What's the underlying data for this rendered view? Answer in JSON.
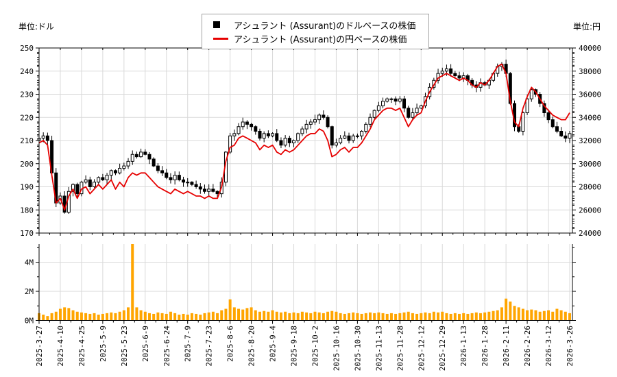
{
  "axes": {
    "unit_left": "単位:ドル",
    "unit_right": "単位:円"
  },
  "legend": {
    "items": [
      {
        "marker": "black-square",
        "label": "アシュラント (Assurant)のドルベースの株価"
      },
      {
        "marker": "red-line",
        "label": "アシュラント (Assurant)の円ベースの株価"
      }
    ]
  },
  "colors": {
    "candle_up_fill": "#ffffff",
    "candle_down_fill": "#000000",
    "candle_stroke": "#000000",
    "yen_line": "#e60000",
    "volume_bar": "#ffa500",
    "grid": "#d9d9d9",
    "axis": "#000000",
    "legend_border": "#a0a0a0"
  },
  "chart_data": {
    "type": "candlestick+line+volume",
    "grid": true,
    "legend_position": "top-center",
    "x_tick_every_n_points": 5,
    "x_tick_labels": [
      "2025-3-27",
      "2025-4-10",
      "2025-4-25",
      "2025-5-9",
      "2025-5-23",
      "2025-6-9",
      "2025-6-24",
      "2025-7-9",
      "2025-7-23",
      "2025-8-6",
      "2025-8-20",
      "2025-9-4",
      "2025-9-18",
      "2025-10-2",
      "2025-10-16",
      "2025-10-30",
      "2025-11-13",
      "2025-11-28",
      "2025-12-12",
      "2025-12-29",
      "2026-1-13",
      "2026-1-28",
      "2026-2-11",
      "2026-2-26",
      "2026-3-12",
      "2026-3-26"
    ],
    "price_axis": {
      "label": "単位:ドル",
      "ylim": [
        170,
        250
      ],
      "ticks": [
        250,
        240,
        230,
        220,
        210,
        200,
        190,
        180,
        170
      ],
      "minor_step": 2
    },
    "yen_axis": {
      "label": "単位:円",
      "ylim": [
        24000,
        40000
      ],
      "ticks": [
        40000,
        38000,
        36000,
        34000,
        32000,
        30000,
        28000,
        26000,
        24000
      ],
      "minor_step": 500
    },
    "volume_axis": {
      "ylim": [
        0,
        5.25
      ],
      "ticks": [
        0,
        2,
        4
      ],
      "tick_labels": [
        "0M",
        "2M",
        "4M"
      ],
      "minor_ticks": [
        1,
        3,
        5
      ]
    },
    "series": [
      {
        "name": "アシュラント (Assurant)のドルベースの株価",
        "type": "candlestick",
        "close_usd": [
          211,
          212,
          210,
          196,
          183,
          186,
          179,
          188,
          191,
          187,
          192,
          193,
          190,
          192,
          194,
          193,
          195,
          197,
          196,
          198,
          199,
          201,
          204,
          203,
          205,
          204,
          202,
          199,
          197,
          196,
          194,
          193,
          195,
          193,
          192,
          192,
          191,
          190,
          189,
          188,
          189,
          188,
          187,
          192,
          205,
          212,
          213,
          216,
          218,
          217,
          216,
          214,
          211,
          213,
          212,
          213,
          210,
          208,
          211,
          209,
          210,
          213,
          215,
          217,
          218,
          219,
          221,
          220,
          216,
          208,
          209,
          211,
          212,
          210,
          212,
          212,
          214,
          217,
          220,
          223,
          225,
          227,
          228,
          228,
          227,
          228,
          224,
          220,
          222,
          224,
          225,
          229,
          233,
          236,
          239,
          240,
          241,
          239,
          238,
          237,
          238,
          236,
          234,
          233,
          235,
          234,
          236,
          239,
          242,
          243,
          239,
          226,
          216,
          214,
          222,
          228,
          232,
          230,
          226,
          222,
          219,
          216,
          214,
          212,
          211,
          213
        ]
      },
      {
        "name": "アシュラント (Assurant)の円ベースの株価",
        "type": "line",
        "close_jpy": [
          31800,
          32000,
          31600,
          29000,
          26600,
          27000,
          26000,
          27200,
          27800,
          27000,
          27800,
          28000,
          27400,
          27800,
          28200,
          27800,
          28200,
          28600,
          27800,
          28400,
          28000,
          28800,
          29200,
          29000,
          29200,
          29200,
          28800,
          28400,
          28000,
          27800,
          27600,
          27400,
          27800,
          27600,
          27400,
          27600,
          27400,
          27200,
          27200,
          27000,
          27200,
          27000,
          27000,
          28000,
          30200,
          31400,
          31600,
          32200,
          32400,
          32200,
          32000,
          31800,
          31200,
          31600,
          31400,
          31600,
          31000,
          30800,
          31200,
          31000,
          31200,
          31600,
          32000,
          32400,
          32600,
          32600,
          33000,
          32800,
          32000,
          30600,
          30800,
          31200,
          31400,
          31000,
          31400,
          31400,
          31800,
          32400,
          33000,
          33800,
          34200,
          34600,
          34800,
          34800,
          34600,
          34800,
          34000,
          33200,
          33800,
          34200,
          34400,
          35400,
          36200,
          36800,
          37400,
          37600,
          37800,
          37600,
          37400,
          37200,
          37400,
          37200,
          36800,
          36600,
          37000,
          36800,
          37200,
          37800,
          38400,
          38600,
          37800,
          35400,
          33600,
          33200,
          34800,
          35800,
          36600,
          36200,
          35600,
          35000,
          34600,
          34200,
          34000,
          33800,
          33800,
          34400
        ]
      },
      {
        "name": "出来高",
        "type": "bar",
        "values_millions": [
          0.5,
          0.4,
          0.3,
          0.5,
          0.6,
          0.8,
          0.9,
          0.85,
          0.7,
          0.6,
          0.55,
          0.5,
          0.45,
          0.5,
          0.4,
          0.45,
          0.5,
          0.55,
          0.5,
          0.6,
          0.7,
          0.9,
          5.3,
          0.9,
          0.7,
          0.6,
          0.5,
          0.45,
          0.55,
          0.5,
          0.45,
          0.6,
          0.5,
          0.4,
          0.45,
          0.4,
          0.5,
          0.45,
          0.4,
          0.5,
          0.55,
          0.6,
          0.5,
          0.7,
          0.8,
          1.45,
          0.9,
          0.8,
          0.75,
          0.85,
          0.9,
          0.7,
          0.6,
          0.65,
          0.6,
          0.7,
          0.6,
          0.55,
          0.6,
          0.5,
          0.55,
          0.5,
          0.6,
          0.55,
          0.5,
          0.6,
          0.55,
          0.5,
          0.6,
          0.65,
          0.6,
          0.5,
          0.45,
          0.5,
          0.55,
          0.5,
          0.45,
          0.5,
          0.55,
          0.5,
          0.55,
          0.5,
          0.45,
          0.5,
          0.45,
          0.5,
          0.55,
          0.6,
          0.5,
          0.45,
          0.5,
          0.55,
          0.5,
          0.6,
          0.55,
          0.6,
          0.5,
          0.45,
          0.5,
          0.45,
          0.5,
          0.45,
          0.5,
          0.55,
          0.5,
          0.55,
          0.6,
          0.65,
          0.7,
          0.9,
          1.5,
          1.3,
          1.0,
          0.9,
          0.8,
          0.7,
          0.75,
          0.7,
          0.6,
          0.65,
          0.7,
          0.6,
          0.8,
          0.7,
          0.6,
          0.5
        ]
      }
    ]
  }
}
